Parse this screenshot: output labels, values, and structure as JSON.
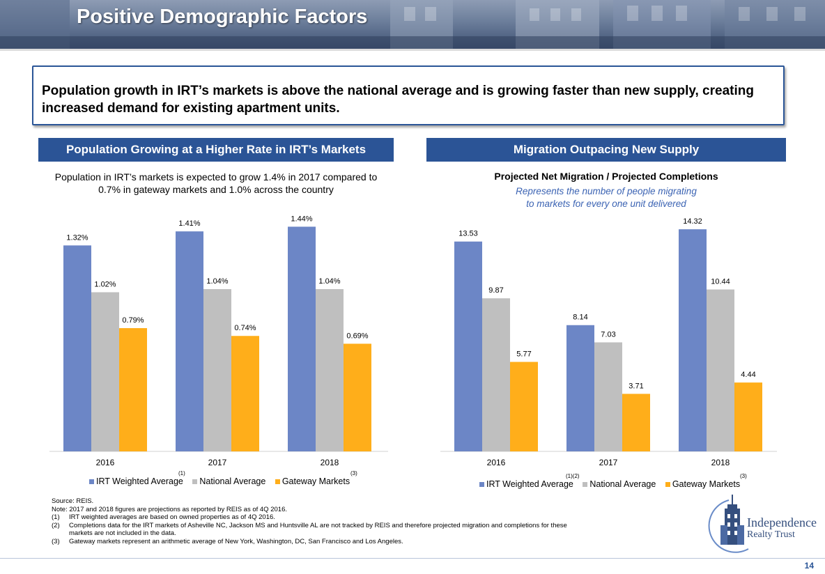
{
  "title": "Positive Demographic Factors",
  "callout": "Population growth in IRT’s markets is above the national average and is growing faster than new supply, creating increased demand for existing apartment units.",
  "colors": {
    "irt": "#6c86c6",
    "national": "#bfbfbf",
    "gateway": "#ffae1a",
    "accent": "#2b5496"
  },
  "left_panel": {
    "header": "Population Growing at a Higher Rate in IRT’s Markets",
    "subtitle_line1": "Population in IRT’s markets is expected to grow 1.4% in 2017 compared to",
    "subtitle_line2": "0.7% in gateway markets and 1.0% across the country",
    "legend": {
      "irt": "IRT Weighted Average",
      "irt_sup": "(1)",
      "national": "National Average",
      "gateway": "Gateway Markets",
      "gateway_sup": "(3)"
    }
  },
  "right_panel": {
    "header": "Migration Outpacing New Supply",
    "chart_title": "Projected Net Migration / Projected Completions",
    "note_line1": "Represents the number of people migrating",
    "note_line2": "to markets for every one unit delivered",
    "legend": {
      "irt": "IRT Weighted Average",
      "irt_sup": "(1)(2)",
      "national": "National Average",
      "gateway": "Gateway Markets",
      "gateway_sup": "(3)"
    }
  },
  "chart_data": [
    {
      "type": "bar",
      "title": "Population Growing at a Higher Rate in IRT’s Markets",
      "categories": [
        "2016",
        "2017",
        "2018"
      ],
      "series": [
        {
          "name": "IRT Weighted Average",
          "values": [
            1.32,
            1.41,
            1.44
          ],
          "labels": [
            "1.32%",
            "1.41%",
            "1.44%"
          ]
        },
        {
          "name": "National Average",
          "values": [
            1.02,
            1.04,
            1.04
          ],
          "labels": [
            "1.02%",
            "1.04%",
            "1.04%"
          ]
        },
        {
          "name": "Gateway Markets",
          "values": [
            0.79,
            0.74,
            0.69
          ],
          "labels": [
            "0.79%",
            "0.74%",
            "0.69%"
          ]
        }
      ],
      "ylim": [
        0,
        1.5
      ],
      "grid": false,
      "legend": "bottom"
    },
    {
      "type": "bar",
      "title": "Projected Net Migration / Projected Completions",
      "categories": [
        "2016",
        "2017",
        "2018"
      ],
      "series": [
        {
          "name": "IRT Weighted Average",
          "values": [
            13.53,
            8.14,
            14.32
          ],
          "labels": [
            "13.53",
            "8.14",
            "14.32"
          ]
        },
        {
          "name": "National Average",
          "values": [
            9.87,
            7.03,
            10.44
          ],
          "labels": [
            "9.87",
            "7.03",
            "10.44"
          ]
        },
        {
          "name": "Gateway Markets",
          "values": [
            5.77,
            3.71,
            4.44
          ],
          "labels": [
            "5.77",
            "3.71",
            "4.44"
          ]
        }
      ],
      "ylim": [
        0,
        15
      ],
      "grid": false,
      "legend": "bottom"
    }
  ],
  "footnotes": {
    "source": "Source: REIS.",
    "note": "Note: 2017 and 2018 figures are projections as reported by REIS as of 4Q 2016.",
    "items": [
      {
        "num": "(1)",
        "text": "IRT weighted averages are based on owned properties as of 4Q 2016."
      },
      {
        "num": "(2)",
        "text": "Completions data for the IRT markets of Asheville NC, Jackson MS and Huntsville AL are not tracked by REIS and therefore projected migration and completions for these"
      },
      {
        "num": "",
        "text": "markets are not included in the data."
      },
      {
        "num": "(3)",
        "text": "Gateway markets represent an arithmetic average of New York, Washington, DC, San Francisco and Los Angeles."
      }
    ]
  },
  "logo": {
    "line1": "Independence",
    "line2": "Realty Trust"
  },
  "page_number": "14"
}
